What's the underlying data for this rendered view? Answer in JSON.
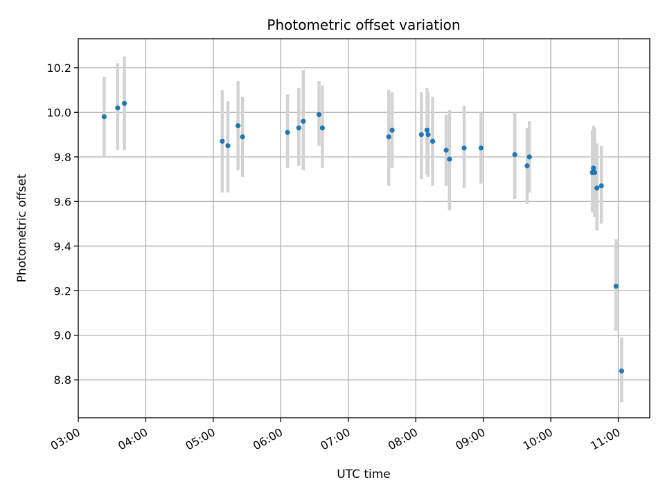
{
  "chart_data": {
    "type": "scatter",
    "title": "Photometric offset variation",
    "xlabel": "UTC time",
    "ylabel": "Photometric offset",
    "xlim": [
      "03:00",
      "11:28"
    ],
    "ylim": [
      8.63,
      10.33
    ],
    "x_ticks": [
      "03:00",
      "04:00",
      "05:00",
      "06:00",
      "07:00",
      "08:00",
      "09:00",
      "10:00",
      "11:00"
    ],
    "y_ticks": [
      8.8,
      9.0,
      9.2,
      9.4,
      9.6,
      9.8,
      10.0,
      10.2
    ],
    "grid": true,
    "colors": {
      "points": "#1f77b4",
      "error_bars": "#d3d3d3",
      "grid": "#b0b0b0"
    },
    "points": [
      {
        "x": "03:23",
        "y": 9.98,
        "ylow": 9.8,
        "yhigh": 10.16
      },
      {
        "x": "03:35",
        "y": 10.02,
        "ylow": 9.83,
        "yhigh": 10.22
      },
      {
        "x": "03:41",
        "y": 10.04,
        "ylow": 9.83,
        "yhigh": 10.25
      },
      {
        "x": "05:08",
        "y": 9.87,
        "ylow": 9.64,
        "yhigh": 10.1
      },
      {
        "x": "05:13",
        "y": 9.85,
        "ylow": 9.64,
        "yhigh": 10.05
      },
      {
        "x": "05:22",
        "y": 9.94,
        "ylow": 9.74,
        "yhigh": 10.14
      },
      {
        "x": "05:26",
        "y": 9.89,
        "ylow": 9.71,
        "yhigh": 10.07
      },
      {
        "x": "06:06",
        "y": 9.91,
        "ylow": 9.75,
        "yhigh": 10.08
      },
      {
        "x": "06:16",
        "y": 9.93,
        "ylow": 9.76,
        "yhigh": 10.11
      },
      {
        "x": "06:20",
        "y": 9.96,
        "ylow": 9.74,
        "yhigh": 10.19
      },
      {
        "x": "06:34",
        "y": 9.99,
        "ylow": 9.85,
        "yhigh": 10.14
      },
      {
        "x": "06:37",
        "y": 9.93,
        "ylow": 9.75,
        "yhigh": 10.12
      },
      {
        "x": "07:36",
        "y": 9.89,
        "ylow": 9.67,
        "yhigh": 10.1
      },
      {
        "x": "07:39",
        "y": 9.92,
        "ylow": 9.75,
        "yhigh": 10.09
      },
      {
        "x": "08:05",
        "y": 9.9,
        "ylow": 9.7,
        "yhigh": 10.09
      },
      {
        "x": "08:10",
        "y": 9.92,
        "ylow": 9.72,
        "yhigh": 10.11
      },
      {
        "x": "08:11",
        "y": 9.9,
        "ylow": 9.71,
        "yhigh": 10.09
      },
      {
        "x": "08:15",
        "y": 9.87,
        "ylow": 9.67,
        "yhigh": 10.07
      },
      {
        "x": "08:27",
        "y": 9.83,
        "ylow": 9.67,
        "yhigh": 9.99
      },
      {
        "x": "08:30",
        "y": 9.79,
        "ylow": 9.56,
        "yhigh": 10.01
      },
      {
        "x": "08:43",
        "y": 9.84,
        "ylow": 9.66,
        "yhigh": 10.03
      },
      {
        "x": "08:58",
        "y": 9.84,
        "ylow": 9.68,
        "yhigh": 10.0
      },
      {
        "x": "09:28",
        "y": 9.81,
        "ylow": 9.61,
        "yhigh": 10.0
      },
      {
        "x": "09:39",
        "y": 9.76,
        "ylow": 9.59,
        "yhigh": 9.93
      },
      {
        "x": "09:41",
        "y": 9.8,
        "ylow": 9.64,
        "yhigh": 9.96
      },
      {
        "x": "10:37",
        "y": 9.73,
        "ylow": 9.55,
        "yhigh": 9.92
      },
      {
        "x": "10:38",
        "y": 9.75,
        "ylow": 9.56,
        "yhigh": 9.94
      },
      {
        "x": "10:39",
        "y": 9.73,
        "ylow": 9.53,
        "yhigh": 9.93
      },
      {
        "x": "10:41",
        "y": 9.66,
        "ylow": 9.47,
        "yhigh": 9.86
      },
      {
        "x": "10:45",
        "y": 9.67,
        "ylow": 9.5,
        "yhigh": 9.85
      },
      {
        "x": "10:58",
        "y": 9.22,
        "ylow": 9.02,
        "yhigh": 9.43
      },
      {
        "x": "11:03",
        "y": 8.84,
        "ylow": 8.7,
        "yhigh": 8.99
      }
    ]
  }
}
